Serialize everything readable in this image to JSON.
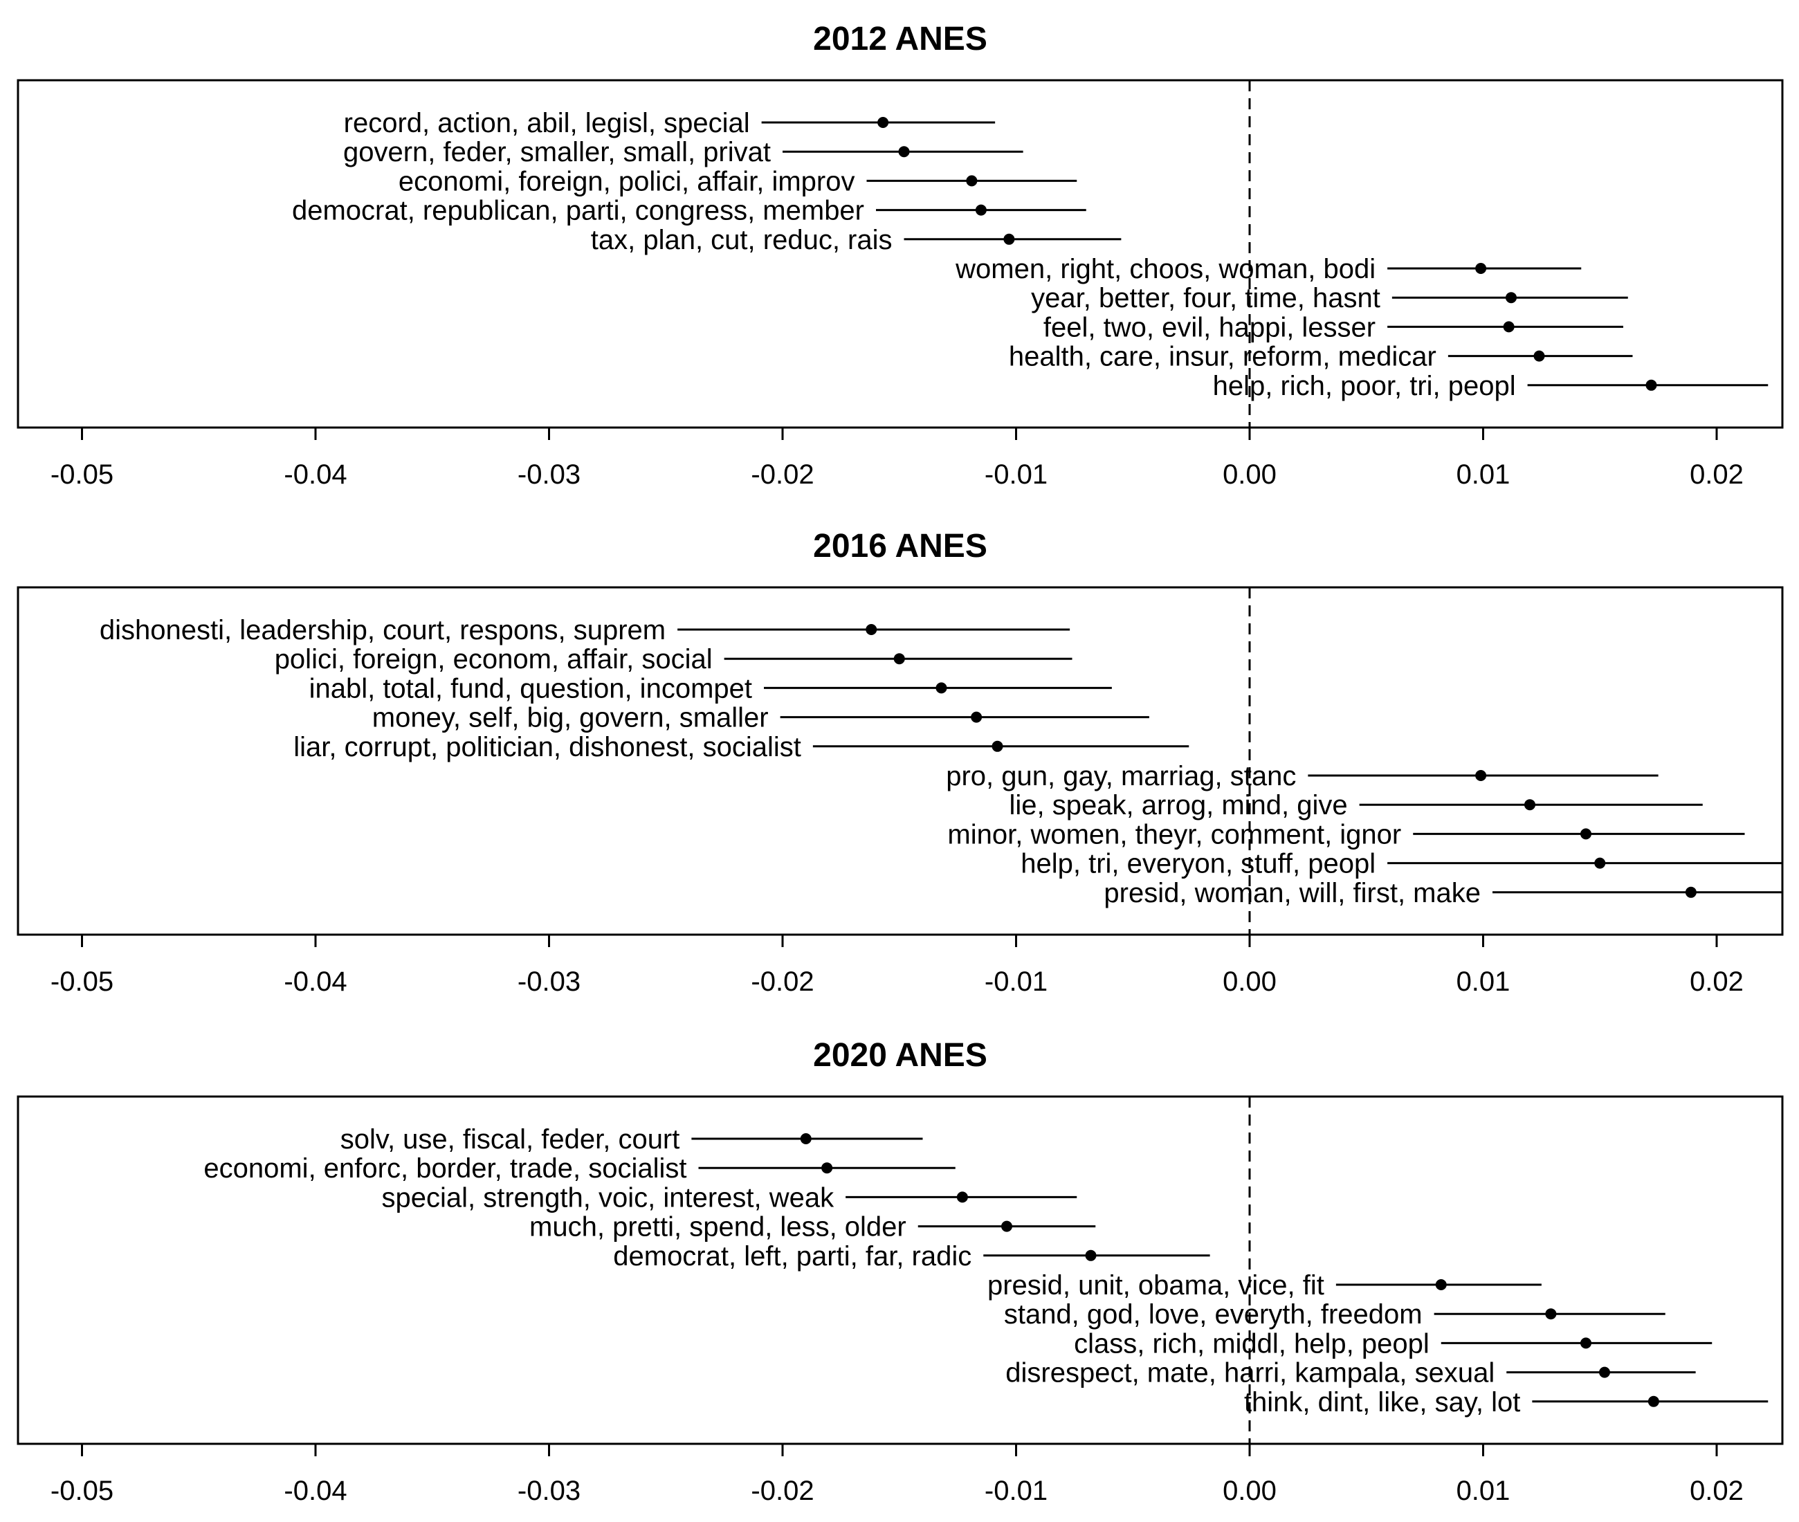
{
  "chart_data": [
    {
      "type": "dot-interval",
      "title": "2012 ANES",
      "xlim": [
        -0.05,
        0.022
      ],
      "x_ticks": [
        "-0.05",
        "-0.04",
        "-0.03",
        "-0.02",
        "-0.01",
        "0.00",
        "0.01",
        "0.02"
      ],
      "x_tick_values": [
        -0.05,
        -0.04,
        -0.03,
        -0.02,
        -0.01,
        0.0,
        0.01,
        0.02
      ],
      "reference_line": 0.0,
      "rows": [
        {
          "label": "record, action, abil, legisl, special",
          "estimate": -0.0157,
          "lower": -0.0209,
          "upper": -0.0109
        },
        {
          "label": "govern, feder, smaller, small, privat",
          "estimate": -0.0148,
          "lower": -0.02,
          "upper": -0.0097
        },
        {
          "label": "economi, foreign, polici, affair, improv",
          "estimate": -0.0119,
          "lower": -0.0164,
          "upper": -0.0074
        },
        {
          "label": "democrat, republican, parti, congress, member",
          "estimate": -0.0115,
          "lower": -0.016,
          "upper": -0.007
        },
        {
          "label": "tax, plan, cut, reduc, rais",
          "estimate": -0.0103,
          "lower": -0.0148,
          "upper": -0.0055
        },
        {
          "label": "women, right, choos, woman, bodi",
          "estimate": 0.0099,
          "lower": 0.0059,
          "upper": 0.0142
        },
        {
          "label": "year, better, four, time, hasnt",
          "estimate": 0.0112,
          "lower": 0.0061,
          "upper": 0.0162
        },
        {
          "label": "feel, two, evil, happi, lesser",
          "estimate": 0.0111,
          "lower": 0.0059,
          "upper": 0.016
        },
        {
          "label": "health, care, insur, reform, medicar",
          "estimate": 0.0124,
          "lower": 0.0085,
          "upper": 0.0164
        },
        {
          "label": "help, rich, poor, tri, peopl",
          "estimate": 0.0172,
          "lower": 0.0119,
          "upper": 0.0222
        }
      ]
    },
    {
      "type": "dot-interval",
      "title": "2016 ANES",
      "xlim": [
        -0.05,
        0.022
      ],
      "x_ticks": [
        "-0.05",
        "-0.04",
        "-0.03",
        "-0.02",
        "-0.01",
        "0.00",
        "0.01",
        "0.02"
      ],
      "x_tick_values": [
        -0.05,
        -0.04,
        -0.03,
        -0.02,
        -0.01,
        0.0,
        0.01,
        0.02
      ],
      "reference_line": 0.0,
      "rows": [
        {
          "label": "dishonesti, leadership, court, respons, suprem",
          "estimate": -0.0162,
          "lower": -0.0245,
          "upper": -0.0077
        },
        {
          "label": "polici, foreign, econom, affair, social",
          "estimate": -0.015,
          "lower": -0.0225,
          "upper": -0.0076
        },
        {
          "label": "inabl, total, fund, question, incompet",
          "estimate": -0.0132,
          "lower": -0.0208,
          "upper": -0.0059
        },
        {
          "label": "money, self, big, govern, smaller",
          "estimate": -0.0117,
          "lower": -0.0201,
          "upper": -0.0043
        },
        {
          "label": "liar, corrupt, politician, dishonest, socialist",
          "estimate": -0.0108,
          "lower": -0.0187,
          "upper": -0.0026
        },
        {
          "label": "pro, gun, gay, marriag, stanc",
          "estimate": 0.0099,
          "lower": 0.0025,
          "upper": 0.0175
        },
        {
          "label": "lie, speak, arrog, mind, give",
          "estimate": 0.012,
          "lower": 0.0047,
          "upper": 0.0194
        },
        {
          "label": "minor, women, theyr, comment, ignor",
          "estimate": 0.0144,
          "lower": 0.007,
          "upper": 0.0212
        },
        {
          "label": "help, tri, everyon, stuff, peopl",
          "estimate": 0.015,
          "lower": 0.0059,
          "upper": 0.023
        },
        {
          "label": "presid, woman, will, first, make",
          "estimate": 0.0189,
          "lower": 0.0104,
          "upper": 0.023
        }
      ]
    },
    {
      "type": "dot-interval",
      "title": "2020 ANES",
      "xlim": [
        -0.05,
        0.022
      ],
      "x_ticks": [
        "-0.05",
        "-0.04",
        "-0.03",
        "-0.02",
        "-0.01",
        "0.00",
        "0.01",
        "0.02"
      ],
      "x_tick_values": [
        -0.05,
        -0.04,
        -0.03,
        -0.02,
        -0.01,
        0.0,
        0.01,
        0.02
      ],
      "reference_line": 0.0,
      "rows": [
        {
          "label": "solv, use, fiscal, feder, court",
          "estimate": -0.019,
          "lower": -0.0239,
          "upper": -0.014
        },
        {
          "label": "economi, enforc, border, trade, socialist",
          "estimate": -0.0181,
          "lower": -0.0236,
          "upper": -0.0126
        },
        {
          "label": "special, strength, voic, interest, weak",
          "estimate": -0.0123,
          "lower": -0.0173,
          "upper": -0.0074
        },
        {
          "label": "much, pretti, spend, less, older",
          "estimate": -0.0104,
          "lower": -0.0142,
          "upper": -0.0066
        },
        {
          "label": "democrat, left, parti, far, radic",
          "estimate": -0.0068,
          "lower": -0.0114,
          "upper": -0.0017
        },
        {
          "label": "presid, unit, obama, vice, fit",
          "estimate": 0.0082,
          "lower": 0.0037,
          "upper": 0.0125
        },
        {
          "label": "stand, god, love, everyth, freedom",
          "estimate": 0.0129,
          "lower": 0.0079,
          "upper": 0.0178
        },
        {
          "label": "class, rich, middl, help, peopl",
          "estimate": 0.0144,
          "lower": 0.0082,
          "upper": 0.0198
        },
        {
          "label": "disrespect, mate, harri, kampala, sexual",
          "estimate": 0.0152,
          "lower": 0.011,
          "upper": 0.0191
        },
        {
          "label": "think, dint, like, say, lot",
          "estimate": 0.0173,
          "lower": 0.0121,
          "upper": 0.0222
        }
      ]
    }
  ]
}
